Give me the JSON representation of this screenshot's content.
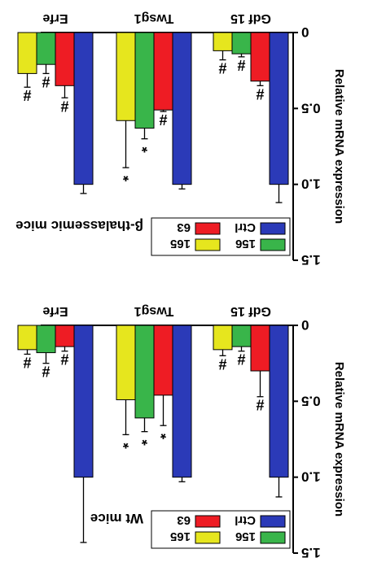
{
  "orientation_note": "",
  "colors": {
    "Ctrl": "#2b3ab8",
    "63": "#ee1c24",
    "156": "#39b54a",
    "165": "#e6e61e"
  },
  "chart_data": [
    {
      "type": "bar",
      "title": "β-thalassemic mice",
      "ylabel": "Relative mRNA expression",
      "ylim": [
        0,
        1.5
      ],
      "yticks": [
        "0",
        "0.5",
        "1.0",
        "1.5"
      ],
      "categories": [
        "Gdf 15",
        "Twsg1",
        "Erfe"
      ],
      "series": [
        {
          "name": "Ctrl",
          "values": [
            1.0,
            1.0,
            1.0
          ],
          "errors": [
            0.12,
            0.03,
            0.06
          ],
          "marks": [
            "",
            "",
            ""
          ]
        },
        {
          "name": "63",
          "values": [
            0.32,
            0.51,
            0.35
          ],
          "errors": [
            0.03,
            0.01,
            0.08
          ],
          "marks": [
            "#",
            "#",
            "#"
          ]
        },
        {
          "name": "156",
          "values": [
            0.14,
            0.63,
            0.21
          ],
          "errors": [
            0.02,
            0.07,
            0.06
          ],
          "marks": [
            "#",
            "*",
            "#"
          ]
        },
        {
          "name": "165",
          "values": [
            0.12,
            0.58,
            0.27
          ],
          "errors": [
            0.06,
            0.31,
            0.09
          ],
          "marks": [
            "#",
            "*",
            "#"
          ]
        }
      ],
      "legend": [
        "156",
        "165",
        "Ctrl",
        "63"
      ]
    },
    {
      "type": "bar",
      "title": "Wt mice",
      "ylabel": "Relative mRNA expression",
      "ylim": [
        0,
        1.5
      ],
      "yticks": [
        "0",
        "0.5",
        "1.0",
        "1.5"
      ],
      "categories": [
        "Gdf 15",
        "Twsg1",
        "Erfe"
      ],
      "series": [
        {
          "name": "Ctrl",
          "values": [
            1.0,
            1.0,
            1.0
          ],
          "errors": [
            0.13,
            0.03,
            0.43
          ],
          "marks": [
            "",
            "",
            ""
          ]
        },
        {
          "name": "63",
          "values": [
            0.3,
            0.46,
            0.14
          ],
          "errors": [
            0.17,
            0.2,
            0.03
          ],
          "marks": [
            "#",
            "*",
            "#"
          ]
        },
        {
          "name": "156",
          "values": [
            0.14,
            0.61,
            0.18
          ],
          "errors": [
            0.03,
            0.09,
            0.07
          ],
          "marks": [
            "#",
            "*",
            "#"
          ]
        },
        {
          "name": "165",
          "values": [
            0.16,
            0.49,
            0.16
          ],
          "errors": [
            0.04,
            0.23,
            0.03
          ],
          "marks": [
            "#",
            "*",
            "#"
          ]
        }
      ],
      "legend": [
        "156",
        "165",
        "Ctrl",
        "63"
      ]
    }
  ]
}
